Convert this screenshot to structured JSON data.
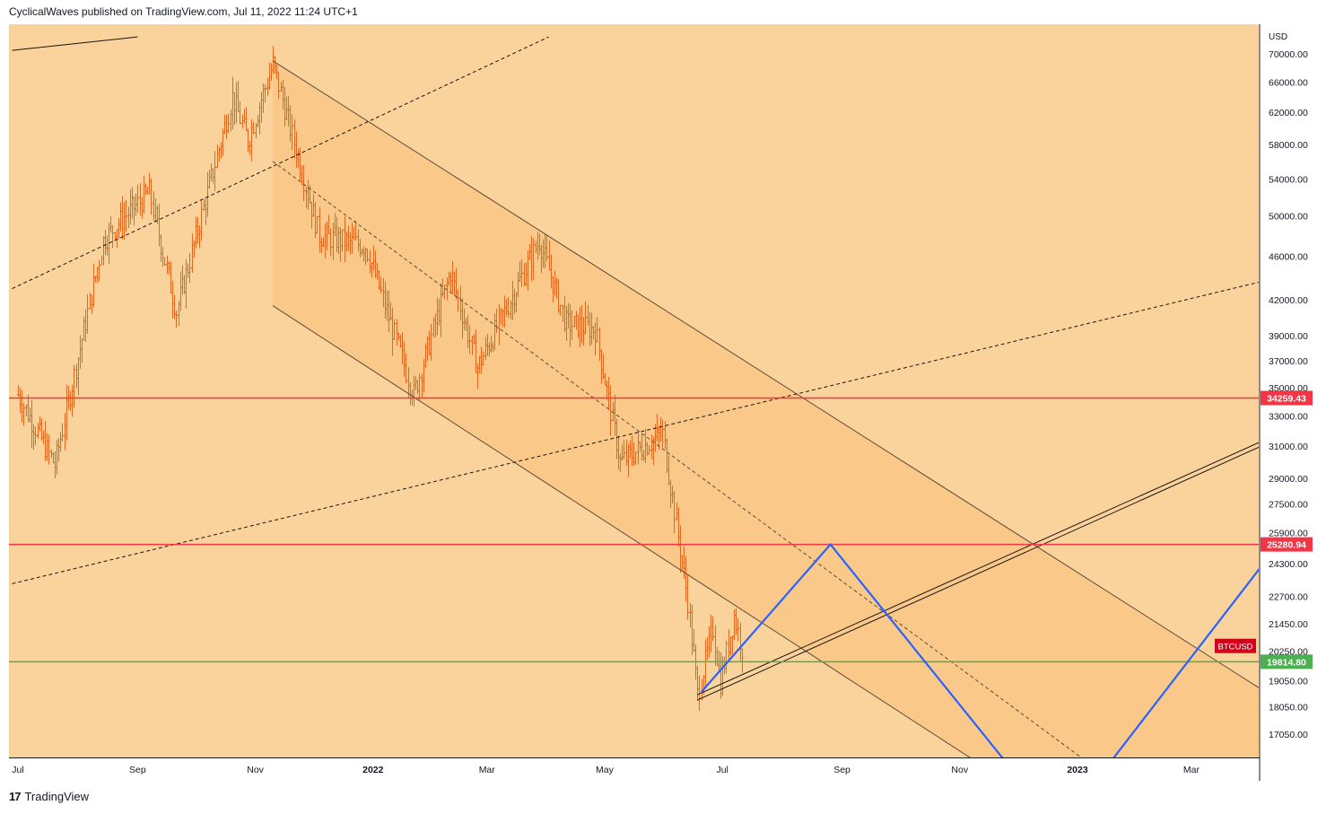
{
  "header": {
    "publish_line": "CyclicalWaves published on TradingView.com, Jul 11, 2022 11:24 UTC+1"
  },
  "footer": {
    "brand": "TradingView",
    "logo_mark": "17"
  },
  "colors": {
    "background": "#fad29c",
    "channel_fill": "#fac98a",
    "price_bars": "#e0691f",
    "resistance_line": "#f23645",
    "support_line": "#4caf50",
    "projection_line": "#2962ff",
    "trend_line": "#5d4a37"
  },
  "chart_data": {
    "type": "ohlc-bars",
    "symbol": "BTCUSD",
    "currency": "USD",
    "scale": "log",
    "ylim": [
      16000,
      72500
    ],
    "x_tick_labels": [
      "Jul",
      "Sep",
      "Nov",
      "2022",
      "Mar",
      "May",
      "Jul",
      "Sep",
      "Nov",
      "2023",
      "Mar"
    ],
    "x_tick_dates": [
      "2021-07-01",
      "2021-09-01",
      "2021-11-01",
      "2022-01-01",
      "2022-03-01",
      "2022-05-01",
      "2022-07-01",
      "2022-09-01",
      "2022-11-01",
      "2023-01-01",
      "2023-03-01"
    ],
    "y_ticks": [
      70000,
      66000,
      62000,
      58000,
      54000,
      50000,
      46000,
      42000,
      39000,
      37000,
      35000,
      33000,
      31000,
      29000,
      27500,
      25900,
      24300,
      22700,
      21450,
      20250,
      19050,
      18050,
      17050
    ],
    "y_tick_labels": [
      "70000.00",
      "66000.00",
      "62000.00",
      "58000.00",
      "54000.00",
      "50000.00",
      "46000.00",
      "42000.00",
      "39000.00",
      "37000.00",
      "35000.00",
      "33000.00",
      "31000.00",
      "29000.00",
      "27500.00",
      "25900.00",
      "24300.00",
      "22700.00",
      "21450.00",
      "20250.00",
      "19050.00",
      "18050.00",
      "17050.00"
    ],
    "price_path": [
      [
        "2021-07-01",
        34500
      ],
      [
        "2021-07-20",
        29800
      ],
      [
        "2021-08-14",
        47500
      ],
      [
        "2021-08-23",
        49500
      ],
      [
        "2021-09-07",
        52500
      ],
      [
        "2021-09-21",
        41000
      ],
      [
        "2021-10-20",
        64000
      ],
      [
        "2021-10-28",
        58500
      ],
      [
        "2021-11-10",
        68500
      ],
      [
        "2021-12-04",
        48000
      ],
      [
        "2021-12-28",
        47000
      ],
      [
        "2022-01-22",
        34500
      ],
      [
        "2022-02-10",
        44500
      ],
      [
        "2022-02-24",
        36500
      ],
      [
        "2022-03-28",
        47500
      ],
      [
        "2022-04-11",
        40000
      ],
      [
        "2022-04-26",
        39500
      ],
      [
        "2022-05-09",
        30000
      ],
      [
        "2022-05-31",
        31800
      ],
      [
        "2022-06-13",
        22500
      ],
      [
        "2022-06-18",
        18500
      ],
      [
        "2022-06-26",
        21200
      ],
      [
        "2022-06-30",
        19000
      ],
      [
        "2022-07-07",
        21800
      ],
      [
        "2022-07-11",
        20400
      ]
    ],
    "horizontal_levels": [
      {
        "value": 34259.43,
        "label": "34259.43",
        "role": "resistance"
      },
      {
        "value": 25280.94,
        "label": "25280.94",
        "role": "resistance"
      },
      {
        "value": 19814.8,
        "label": "19814.80",
        "role": "support"
      }
    ],
    "last_price_tag": {
      "label": "BTCUSD",
      "value": 20400
    },
    "descending_channel": {
      "upper": [
        [
          "2021-11-10",
          69000
        ],
        [
          "2023-04-15",
          18300
        ]
      ],
      "middle": [
        [
          "2021-11-10",
          56000
        ],
        [
          "2023-01-08",
          16000
        ]
      ],
      "lower": [
        [
          "2021-11-10",
          41500
        ],
        [
          "2022-11-12",
          16000
        ]
      ]
    },
    "dashed_trendlines": [
      [
        [
          "2021-06-28",
          43000
        ],
        [
          "2022-04-02",
          72500
        ]
      ],
      [
        [
          "2021-06-28",
          23300
        ],
        [
          "2023-04-15",
          44000
        ]
      ]
    ],
    "solid_trendlines": [
      [
        [
          "2021-06-28",
          70500
        ],
        [
          "2021-09-01",
          72500
        ]
      ],
      [
        [
          "2022-06-18",
          18500
        ],
        [
          "2023-04-15",
          31800
        ]
      ],
      [
        [
          "2022-06-18",
          18300
        ],
        [
          "2023-04-15",
          31500
        ]
      ]
    ],
    "projection_path": [
      [
        "2022-06-20",
        18600
      ],
      [
        "2022-08-26",
        25280
      ],
      [
        "2022-11-26",
        16000
      ],
      [
        "2023-01-17",
        16000
      ],
      [
        "2023-04-15",
        25280
      ]
    ]
  }
}
